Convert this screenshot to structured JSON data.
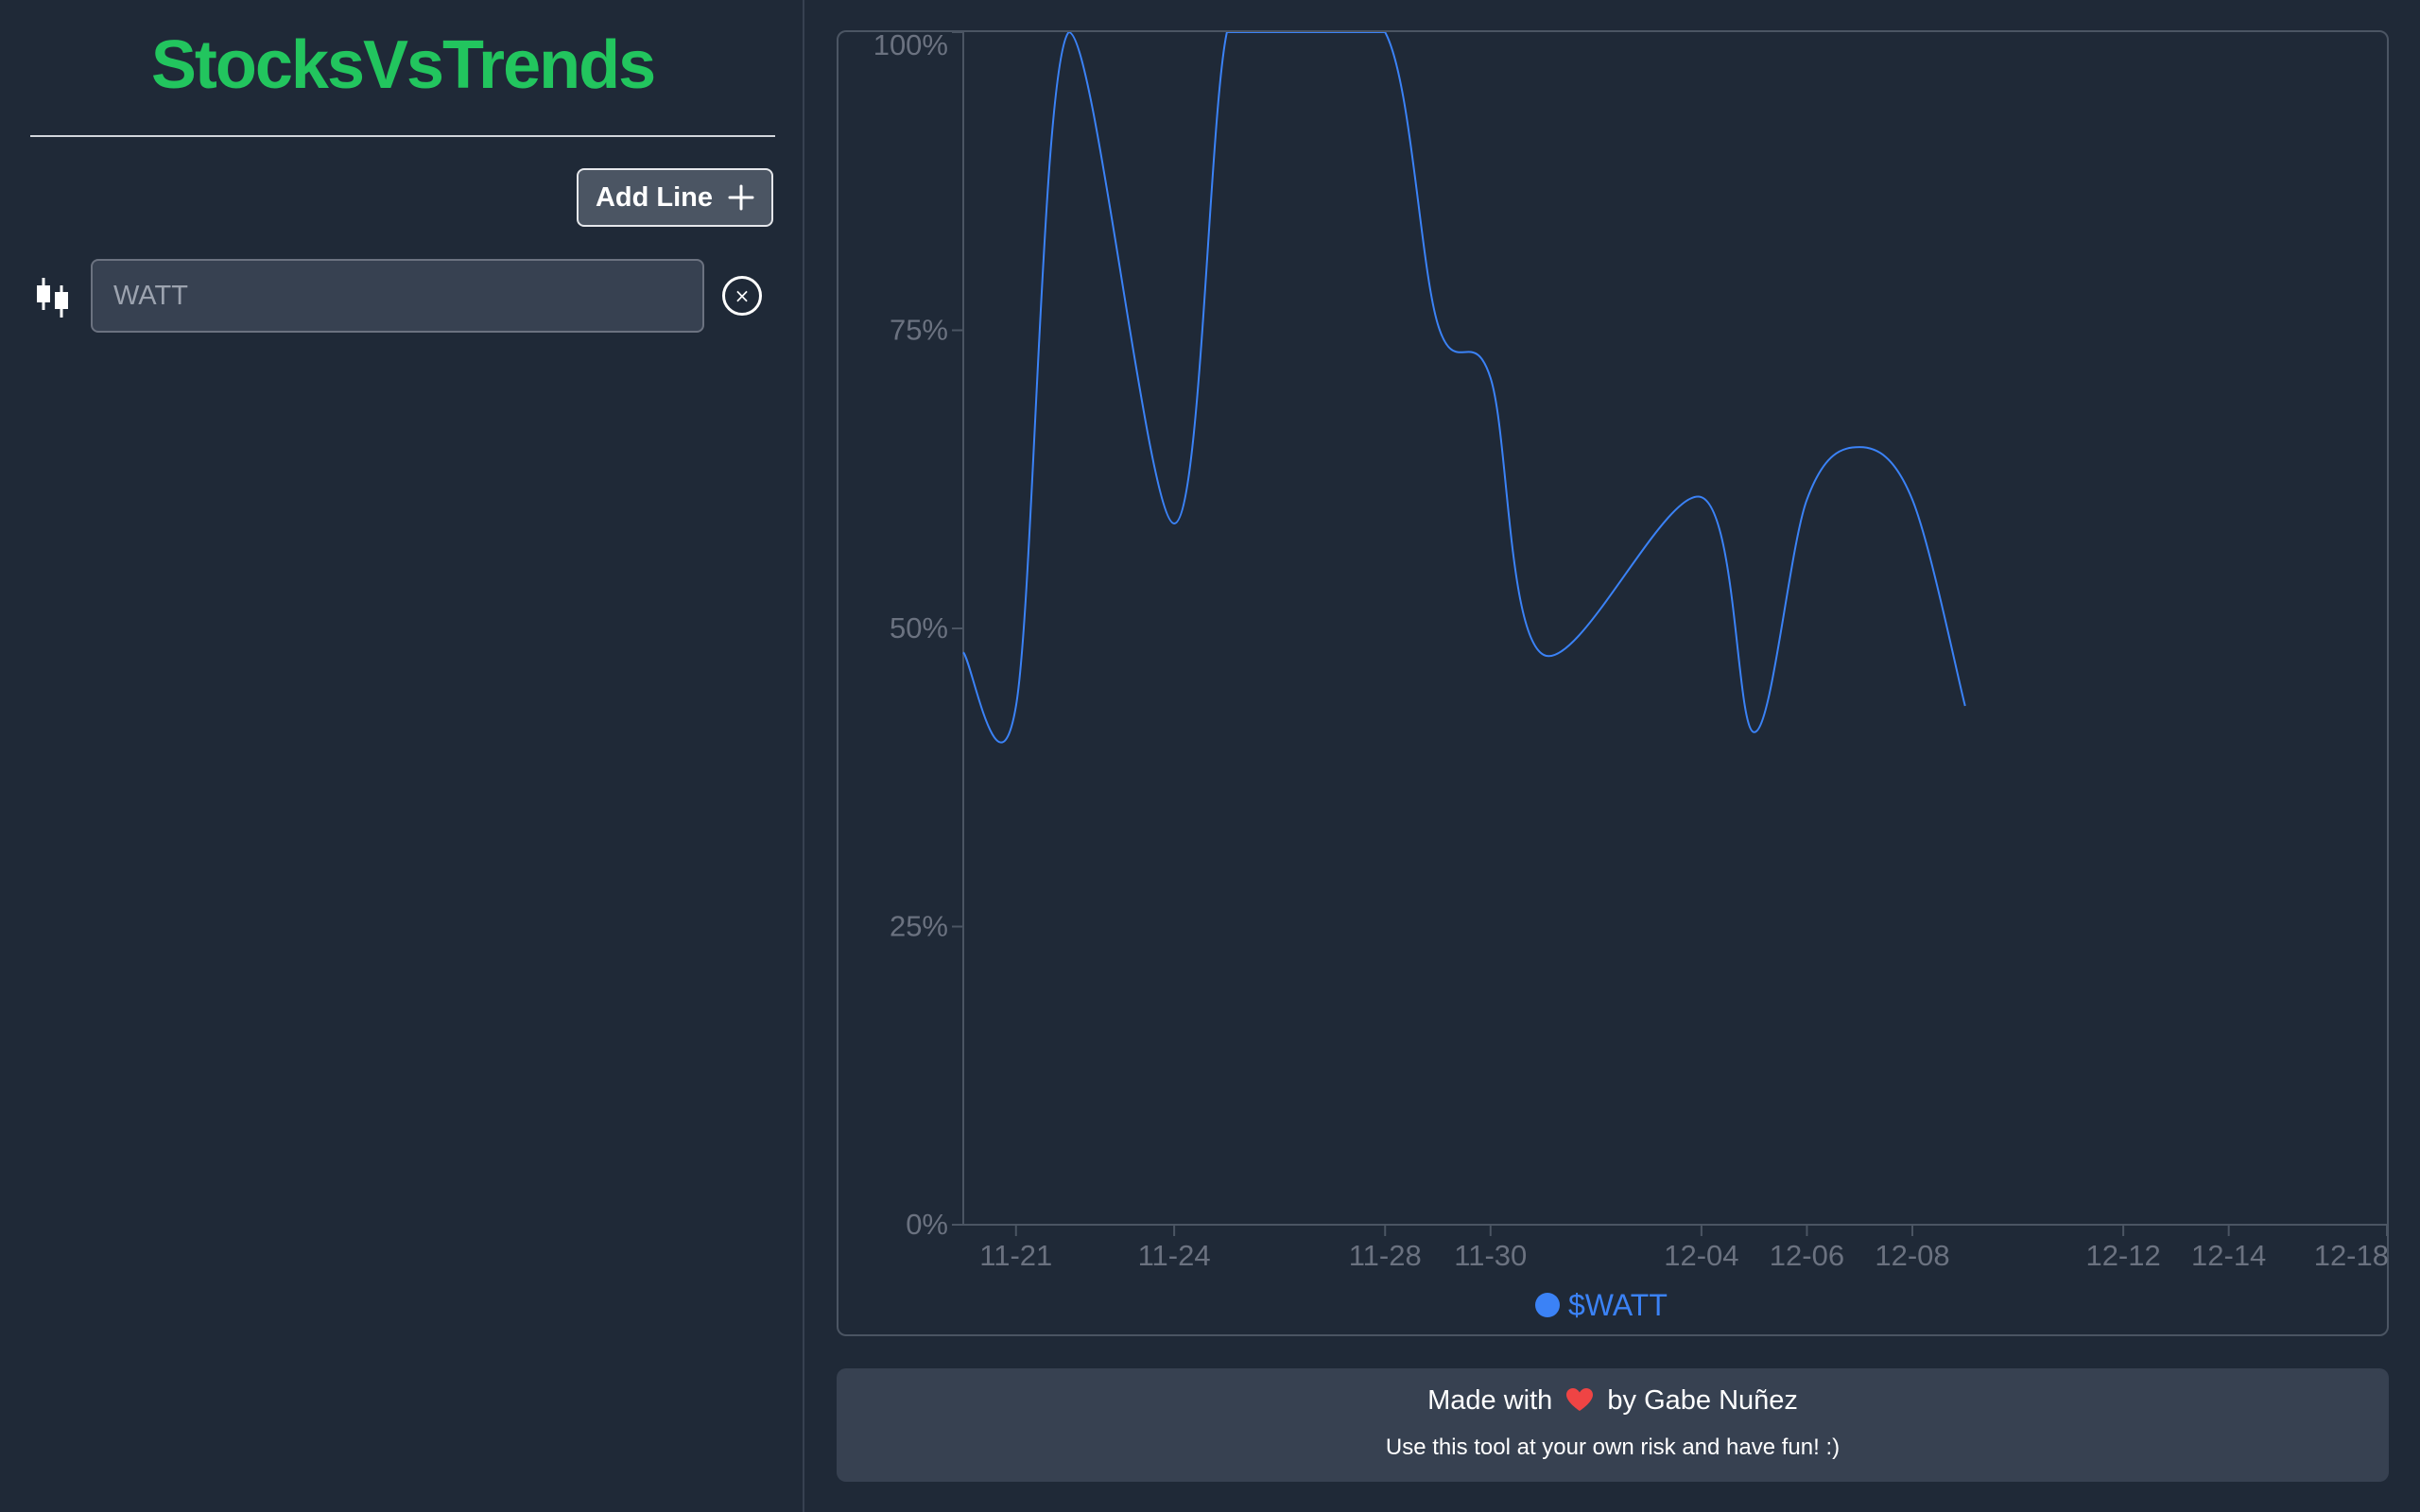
{
  "sidebar": {
    "brand": "StocksVsTrends",
    "add_line_label": "Add Line",
    "lines": [
      {
        "type_icon": "candlestick-icon",
        "value": "",
        "placeholder": "WATT",
        "remove_icon": "close-circle-icon"
      }
    ]
  },
  "chart_data": {
    "type": "line",
    "x_type": "date",
    "x_tick_labels": [
      "11-21",
      "11-24",
      "11-28",
      "11-30",
      "12-04",
      "12-06",
      "12-08",
      "12-12",
      "12-14",
      "12-18"
    ],
    "y_tick_labels": [
      "0%",
      "25%",
      "50%",
      "75%",
      "100%"
    ],
    "ylim": [
      0,
      100
    ],
    "grid": false,
    "legend_position": "bottom-center",
    "series": [
      {
        "name": "$WATT",
        "color": "#3b82f6",
        "points": [
          [
            "11-20",
            48
          ],
          [
            "11-21",
            43.5
          ],
          [
            "11-22",
            100
          ],
          [
            "11-24",
            58.8
          ],
          [
            "11-25",
            100
          ],
          [
            "11-26",
            100
          ],
          [
            "11-28",
            100
          ],
          [
            "11-29",
            75.5
          ],
          [
            "11-30",
            71
          ],
          [
            "12-01",
            47.8
          ],
          [
            "12-04",
            61
          ],
          [
            "12-05",
            41.3
          ],
          [
            "12-06",
            60.8
          ],
          [
            "12-07",
            65.2
          ],
          [
            "12-08",
            60.8
          ],
          [
            "12-09",
            43.5
          ]
        ]
      }
    ]
  },
  "footer": {
    "made_with": "Made with",
    "by_author": "by Gabe Nuñez",
    "disclaimer": "Use this tool at your own risk and have fun! :)"
  }
}
